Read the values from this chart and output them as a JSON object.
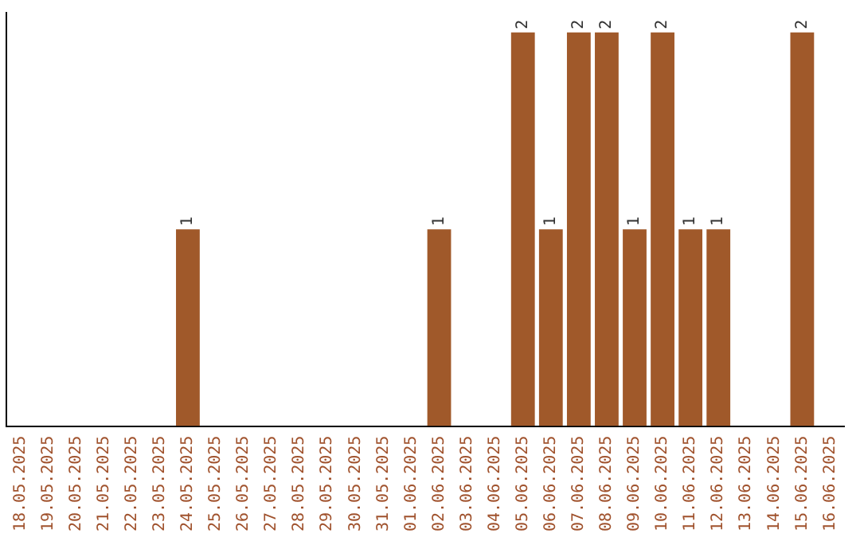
{
  "chart_data": {
    "type": "bar",
    "categories": [
      "18.05.2025",
      "19.05.2025",
      "20.05.2025",
      "21.05.2025",
      "22.05.2025",
      "23.05.2025",
      "24.05.2025",
      "25.05.2025",
      "26.05.2025",
      "27.05.2025",
      "28.05.2025",
      "29.05.2025",
      "30.05.2025",
      "31.05.2025",
      "01.06.2025",
      "02.06.2025",
      "03.06.2025",
      "04.06.2025",
      "05.06.2025",
      "06.06.2025",
      "07.06.2025",
      "08.06.2025",
      "09.06.2025",
      "10.06.2025",
      "11.06.2025",
      "12.06.2025",
      "13.06.2025",
      "14.06.2025",
      "15.06.2025",
      "16.06.2025"
    ],
    "values": [
      0,
      0,
      0,
      0,
      0,
      0,
      1,
      0,
      0,
      0,
      0,
      0,
      0,
      0,
      0,
      1,
      0,
      0,
      2,
      1,
      2,
      2,
      1,
      2,
      1,
      1,
      0,
      0,
      2,
      0
    ],
    "value_labels": [
      null,
      null,
      null,
      null,
      null,
      null,
      "1",
      null,
      null,
      null,
      null,
      null,
      null,
      null,
      null,
      "1",
      null,
      null,
      "2",
      "1",
      "2",
      "2",
      "1",
      "2",
      "1",
      "1",
      null,
      null,
      "2",
      null
    ],
    "color": "#a0592a",
    "grid": false,
    "legend": false,
    "tick_labels": "x"
  }
}
